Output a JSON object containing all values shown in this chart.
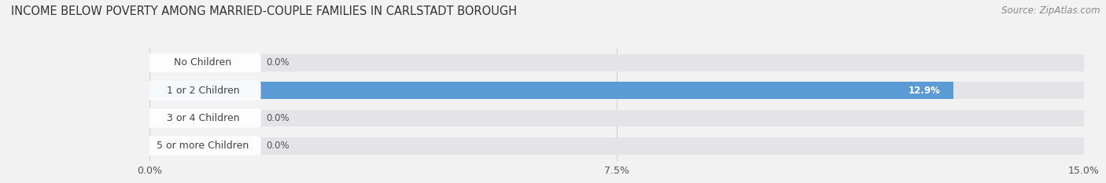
{
  "title": "INCOME BELOW POVERTY AMONG MARRIED-COUPLE FAMILIES IN CARLSTADT BOROUGH",
  "source": "Source: ZipAtlas.com",
  "categories": [
    "No Children",
    "1 or 2 Children",
    "3 or 4 Children",
    "5 or more Children"
  ],
  "values": [
    0.0,
    12.9,
    0.0,
    0.0
  ],
  "bar_colors": [
    "#f2a0a8",
    "#5b9bd5",
    "#c0a0cc",
    "#70c8c8"
  ],
  "xlim": [
    0,
    15.0
  ],
  "xticks": [
    0.0,
    7.5,
    15.0
  ],
  "xtick_labels": [
    "0.0%",
    "7.5%",
    "15.0%"
  ],
  "bg_color": "#f2f2f2",
  "bar_bg_color": "#e4e4e8",
  "title_fontsize": 10.5,
  "source_fontsize": 8.5,
  "tick_fontsize": 9,
  "bar_label_fontsize": 8.5,
  "category_fontsize": 9,
  "figsize": [
    14.06,
    2.33
  ],
  "dpi": 100
}
